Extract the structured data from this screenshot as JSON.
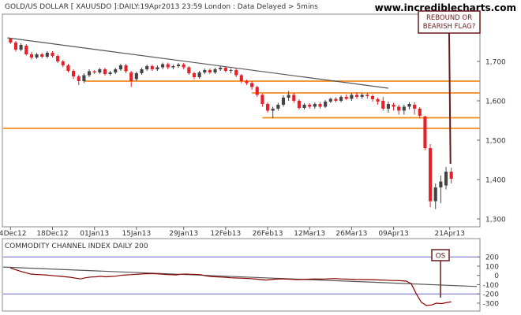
{
  "header": "GOLD/US DOLLAR [ XAUUSDO ]:DAILY:19Apr2013 23:59 London : Data Delayed > 5mins",
  "watermark": "www.incrediblecharts.com",
  "annotation_price": "REBOUND OR\nBEARISH FLAG?",
  "annotation_cci": "OS",
  "cci_title": "COMMODITY CHANNEL INDEX DAILY 200",
  "colors": {
    "up": "#444444",
    "down": "#e8202a",
    "support": "#f08c1e",
    "trendline": "#555555",
    "cci_line": "#8b0000",
    "cci_band": "#6666cc",
    "annotation": "#6b1a1a"
  },
  "chart_data": [
    {
      "type": "candlestick",
      "x_tick_labels": [
        "04Dec12",
        "18Dec12",
        "01Jan13",
        "15Jan13",
        "29Jan13",
        "12Feb13",
        "26Feb13",
        "12Mar13",
        "26Mar13",
        "09Apr13",
        "21Apr13"
      ],
      "y_ticks": [
        1300,
        1400,
        1500,
        1600,
        1700
      ],
      "y_tick_labels": [
        "1,300",
        "1,400",
        "1,500",
        "1,600",
        "1,700"
      ],
      "ylim": [
        1280,
        1820
      ],
      "horizontal_lines": [
        1650,
        1620,
        1557,
        1530
      ],
      "trendline": {
        "from": [
          0,
          1760
        ],
        "to": [
          72,
          1632
        ]
      },
      "candles": [
        [
          1758,
          1748,
          1760,
          1744
        ],
        [
          1748,
          1730,
          1752,
          1725
        ],
        [
          1730,
          1742,
          1746,
          1726
        ],
        [
          1740,
          1718,
          1744,
          1715
        ],
        [
          1718,
          1710,
          1724,
          1705
        ],
        [
          1710,
          1718,
          1722,
          1706
        ],
        [
          1718,
          1712,
          1722,
          1708
        ],
        [
          1712,
          1722,
          1726,
          1708
        ],
        [
          1722,
          1714,
          1726,
          1710
        ],
        [
          1714,
          1700,
          1718,
          1696
        ],
        [
          1700,
          1690,
          1704,
          1685
        ],
        [
          1690,
          1676,
          1694,
          1672
        ],
        [
          1676,
          1662,
          1680,
          1655
        ],
        [
          1662,
          1650,
          1666,
          1640
        ],
        [
          1650,
          1665,
          1670,
          1645
        ],
        [
          1665,
          1675,
          1680,
          1660
        ],
        [
          1675,
          1672,
          1678,
          1668
        ],
        [
          1672,
          1680,
          1684,
          1668
        ],
        [
          1680,
          1668,
          1684,
          1664
        ],
        [
          1668,
          1672,
          1676,
          1664
        ],
        [
          1672,
          1680,
          1684,
          1668
        ],
        [
          1680,
          1690,
          1694,
          1676
        ],
        [
          1690,
          1675,
          1694,
          1670
        ],
        [
          1672,
          1650,
          1676,
          1635
        ],
        [
          1655,
          1670,
          1674,
          1650
        ],
        [
          1670,
          1680,
          1684,
          1666
        ],
        [
          1680,
          1688,
          1692,
          1676
        ],
        [
          1688,
          1680,
          1692,
          1676
        ],
        [
          1680,
          1685,
          1690,
          1676
        ],
        [
          1685,
          1693,
          1697,
          1680
        ],
        [
          1693,
          1685,
          1697,
          1680
        ],
        [
          1685,
          1688,
          1692,
          1680
        ],
        [
          1688,
          1692,
          1696,
          1684
        ],
        [
          1692,
          1685,
          1696,
          1680
        ],
        [
          1685,
          1670,
          1688,
          1666
        ],
        [
          1670,
          1660,
          1674,
          1655
        ],
        [
          1660,
          1672,
          1676,
          1656
        ],
        [
          1672,
          1678,
          1682,
          1668
        ],
        [
          1678,
          1672,
          1682,
          1668
        ],
        [
          1672,
          1680,
          1684,
          1668
        ],
        [
          1680,
          1684,
          1688,
          1676
        ],
        [
          1684,
          1676,
          1688,
          1672
        ],
        [
          1676,
          1678,
          1682,
          1670
        ],
        [
          1678,
          1665,
          1682,
          1660
        ],
        [
          1665,
          1650,
          1668,
          1645
        ],
        [
          1650,
          1645,
          1654,
          1640
        ],
        [
          1645,
          1635,
          1650,
          1628
        ],
        [
          1635,
          1615,
          1638,
          1610
        ],
        [
          1615,
          1592,
          1618,
          1585
        ],
        [
          1592,
          1575,
          1596,
          1570
        ],
        [
          1575,
          1580,
          1585,
          1555
        ],
        [
          1580,
          1590,
          1595,
          1575
        ],
        [
          1590,
          1608,
          1614,
          1585
        ],
        [
          1608,
          1615,
          1625,
          1600
        ],
        [
          1615,
          1600,
          1620,
          1595
        ],
        [
          1600,
          1582,
          1604,
          1578
        ],
        [
          1582,
          1590,
          1594,
          1578
        ],
        [
          1590,
          1585,
          1594,
          1580
        ],
        [
          1585,
          1592,
          1596,
          1580
        ],
        [
          1592,
          1585,
          1596,
          1580
        ],
        [
          1585,
          1598,
          1602,
          1582
        ],
        [
          1598,
          1605,
          1608,
          1594
        ],
        [
          1605,
          1600,
          1609,
          1596
        ],
        [
          1600,
          1610,
          1614,
          1596
        ],
        [
          1610,
          1605,
          1616,
          1602
        ],
        [
          1605,
          1615,
          1620,
          1600
        ],
        [
          1615,
          1610,
          1622,
          1605
        ],
        [
          1610,
          1615,
          1620,
          1605
        ],
        [
          1615,
          1612,
          1620,
          1606
        ],
        [
          1612,
          1604,
          1616,
          1598
        ],
        [
          1604,
          1598,
          1608,
          1590
        ],
        [
          1600,
          1580,
          1610,
          1575
        ],
        [
          1580,
          1592,
          1598,
          1570
        ],
        [
          1590,
          1585,
          1595,
          1575
        ],
        [
          1585,
          1575,
          1590,
          1565
        ],
        [
          1575,
          1585,
          1590,
          1565
        ],
        [
          1585,
          1592,
          1596,
          1578
        ],
        [
          1590,
          1580,
          1596,
          1565
        ],
        [
          1580,
          1562,
          1584,
          1555
        ],
        [
          1560,
          1480,
          1562,
          1475
        ],
        [
          1480,
          1345,
          1490,
          1330
        ],
        [
          1345,
          1380,
          1390,
          1325
        ],
        [
          1380,
          1395,
          1410,
          1340
        ],
        [
          1385,
          1420,
          1432,
          1375
        ],
        [
          1420,
          1402,
          1430,
          1390
        ]
      ]
    },
    {
      "type": "line",
      "title": "COMMODITY CHANNEL INDEX DAILY 200",
      "y_ticks": [
        200,
        100,
        0,
        -100,
        -200,
        -300
      ],
      "y_tick_labels": [
        "200",
        "100",
        "0",
        "-100",
        "-200",
        "-300"
      ],
      "ylim": [
        -360,
        270
      ],
      "band_levels": [
        200,
        -200
      ],
      "trendline": {
        "from": [
          0,
          90
        ],
        "to": [
          97,
          -120
        ]
      },
      "values": [
        80,
        62,
        45,
        30,
        15,
        10,
        8,
        5,
        0,
        -5,
        -10,
        -15,
        -20,
        -30,
        -38,
        -25,
        -18,
        -15,
        -10,
        -15,
        -12,
        -8,
        0,
        5,
        8,
        12,
        15,
        18,
        20,
        18,
        15,
        10,
        8,
        5,
        12,
        15,
        12,
        10,
        8,
        -5,
        -12,
        -15,
        -18,
        -20,
        -25,
        -28,
        -30,
        -32,
        -35,
        -40,
        -45,
        -50,
        -45,
        -40,
        -38,
        -40,
        -42,
        -45,
        -45,
        -42,
        -40,
        -38,
        -40,
        -38,
        -35,
        -35,
        -38,
        -40,
        -42,
        -44,
        -45,
        -45,
        -46,
        -48,
        -50,
        -52,
        -55,
        -55,
        -58,
        -62,
        -90,
        -200,
        -290,
        -325,
        -320,
        -300,
        -305,
        -295,
        -285
      ]
    }
  ]
}
